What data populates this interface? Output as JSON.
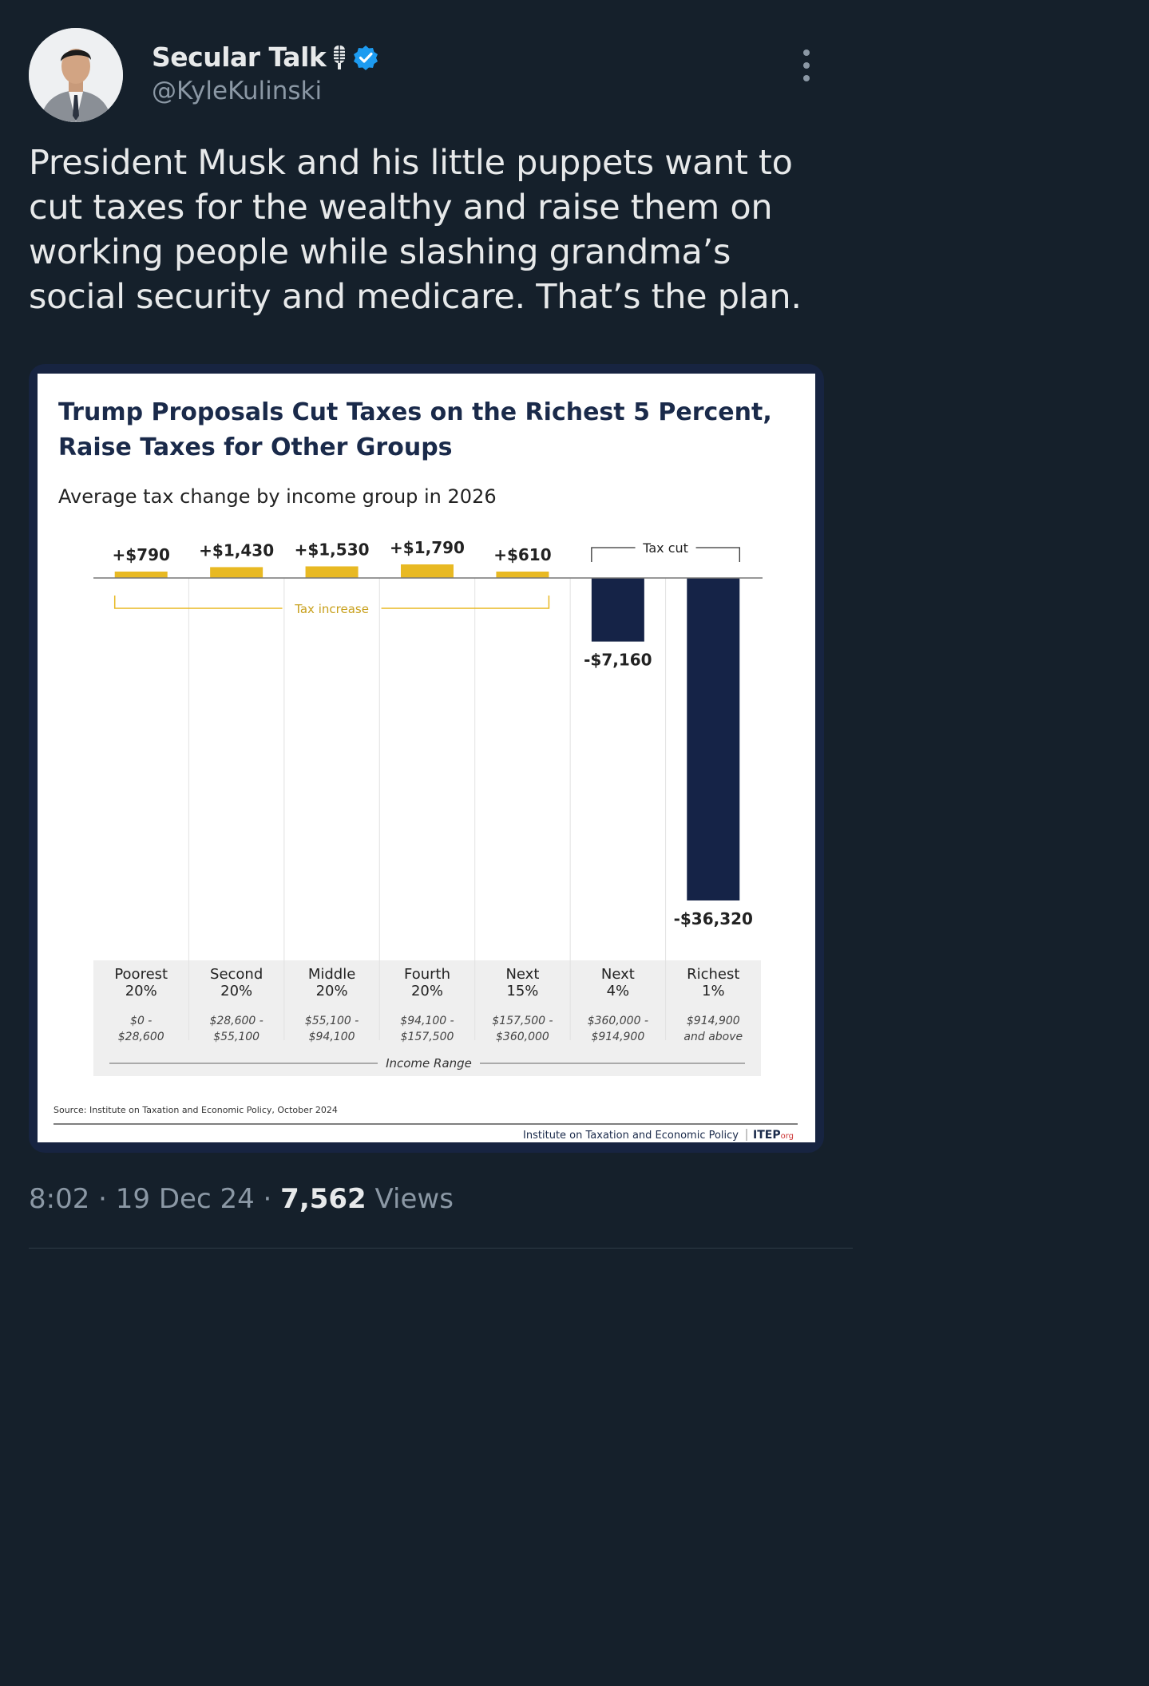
{
  "tweet": {
    "author_name": "Secular Talk",
    "handle": "@KyleKulinski",
    "text": "President Musk and his little puppets want to cut taxes for the wealthy and raise them on working people while slashing grandma’s social security and medicare. That’s the plan.",
    "time": "8:02",
    "date": "19 Dec 24",
    "views_count": "7,562",
    "views_label": "Views"
  },
  "colors": {
    "background": "#15202b",
    "verified": "#1d9bf0",
    "increase": "#e8b923",
    "decrease": "#152347",
    "title": "#1a2a4a"
  },
  "chart_data": {
    "type": "bar",
    "title": "Trump Proposals Cut Taxes on the Richest 5 Percent, Raise Taxes for Other Groups",
    "title_lines": [
      "Trump Proposals Cut Taxes on the Richest 5 Percent,",
      "Raise Taxes for Other Groups"
    ],
    "subtitle": "Average tax change by income group in 2026",
    "xlabel": "Income Range",
    "categories": [
      {
        "group": [
          "Poorest",
          "20%"
        ],
        "range": [
          "$0 -",
          "$28,600"
        ]
      },
      {
        "group": [
          "Second",
          "20%"
        ],
        "range": [
          "$28,600 -",
          "$55,100"
        ]
      },
      {
        "group": [
          "Middle",
          "20%"
        ],
        "range": [
          "$55,100 -",
          "$94,100"
        ]
      },
      {
        "group": [
          "Fourth",
          "20%"
        ],
        "range": [
          "$94,100 -",
          "$157,500"
        ]
      },
      {
        "group": [
          "Next",
          "15%"
        ],
        "range": [
          "$157,500 -",
          "$360,000"
        ]
      },
      {
        "group": [
          "Next",
          "4%"
        ],
        "range": [
          "$360,000 -",
          "$914,900"
        ]
      },
      {
        "group": [
          "Richest",
          "1%"
        ],
        "range": [
          "$914,900",
          "and above"
        ]
      }
    ],
    "values": [
      790,
      1430,
      1530,
      1790,
      610,
      -7160,
      -36320
    ],
    "value_labels": [
      "+$790",
      "+$1,430",
      "+$1,530",
      "+$1,790",
      "+$610",
      "-$7,160",
      "-$36,320"
    ],
    "annotations": {
      "increase": "Tax increase",
      "cut": "Tax cut"
    },
    "source": "Source: Institute on Taxation and Economic Policy, October 2024",
    "footer_org": "Institute on Taxation and Economic Policy",
    "footer_logo": "ITEP",
    "footer_logo_suffix": "org"
  }
}
